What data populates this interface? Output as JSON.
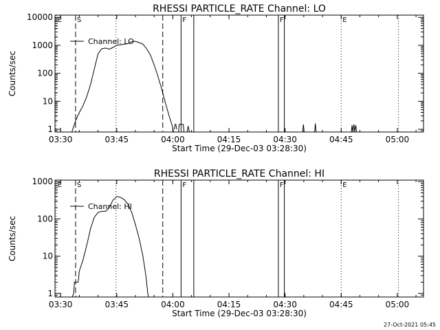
{
  "footer": {
    "date_stamp": "27-Oct-2021 05:45"
  },
  "chart_data": [
    {
      "type": "line",
      "title": "RHESSI PARTICLE_RATE Channel: LO",
      "xlabel": "Start Time (29-Dec-03 03:28:30)",
      "ylabel": "Counts/sec",
      "x_unit": "minutes after 03:28:30",
      "xlim": [
        0,
        98.5
      ],
      "x_ticks": [
        {
          "x": 1.5,
          "label": "03:30"
        },
        {
          "x": 16.5,
          "label": "03:45"
        },
        {
          "x": 31.5,
          "label": "04:00"
        },
        {
          "x": 46.5,
          "label": "04:15"
        },
        {
          "x": 61.5,
          "label": "04:30"
        },
        {
          "x": 76.5,
          "label": "04:45"
        },
        {
          "x": 91.5,
          "label": "05:00"
        }
      ],
      "y_scale": "log",
      "ylim": [
        0.8,
        12000
      ],
      "y_ticks": [
        {
          "y": 1,
          "label": "1"
        },
        {
          "y": 10,
          "label": "10"
        },
        {
          "y": 100,
          "label": "100"
        },
        {
          "y": 1000,
          "label": "1000"
        },
        {
          "y": 10000,
          "label": "10000"
        }
      ],
      "legend": {
        "label": "Channel: LO",
        "position": "top-left"
      },
      "markers": [
        {
          "x": 0.3,
          "label": "E",
          "style": "dotted"
        },
        {
          "x": 5.5,
          "label": "S",
          "style": "dashed"
        },
        {
          "x": 16.3,
          "label": "",
          "style": "dotted"
        },
        {
          "x": 28.8,
          "label": "",
          "style": "dashed"
        },
        {
          "x": 33.7,
          "label": "F",
          "style": "solid"
        },
        {
          "x": 37.1,
          "label": "",
          "style": "solid"
        },
        {
          "x": 59.7,
          "label": "F",
          "style": "solid"
        },
        {
          "x": 61.3,
          "label": "",
          "style": "solid"
        },
        {
          "x": 76.5,
          "label": "E",
          "style": "dotted"
        },
        {
          "x": 91.8,
          "label": "",
          "style": "dotted"
        }
      ],
      "series": [
        {
          "segments": [
            [
              [
                4.5,
                0.8
              ],
              [
                5.5,
                2
              ],
              [
                6.5,
                4
              ],
              [
                7.5,
                7
              ],
              [
                8.5,
                15
              ],
              [
                9.5,
                40
              ],
              [
                10.5,
                140
              ],
              [
                11.5,
                500
              ],
              [
                12.5,
                750
              ],
              [
                13.5,
                800
              ],
              [
                14.5,
                730
              ],
              [
                15.5,
                840
              ],
              [
                16.5,
                1000
              ],
              [
                17.5,
                1050
              ],
              [
                18.5,
                1100
              ],
              [
                19.5,
                1150
              ],
              [
                20.5,
                1350
              ],
              [
                21.5,
                1400
              ],
              [
                22.5,
                1250
              ],
              [
                23.5,
                1100
              ],
              [
                24.5,
                750
              ],
              [
                25.5,
                450
              ],
              [
                26.5,
                200
              ],
              [
                27.5,
                80
              ],
              [
                28.5,
                28
              ],
              [
                29.5,
                9
              ],
              [
                30.5,
                3
              ],
              [
                31.3,
                1.4
              ],
              [
                31.7,
                0.8
              ]
            ],
            [
              [
                31.9,
                1
              ],
              [
                32.1,
                1.5
              ],
              [
                32.3,
                1.5
              ],
              [
                32.5,
                1
              ]
            ],
            [
              [
                33.0,
                0.8
              ],
              [
                33.2,
                1.5
              ],
              [
                34.3,
                1.5
              ],
              [
                34.5,
                0.8
              ]
            ],
            [
              [
                35.3,
                0.8
              ],
              [
                35.6,
                1.3
              ],
              [
                35.9,
                0.8
              ]
            ],
            [
              [
                66.2,
                0.8
              ],
              [
                66.4,
                1.5
              ],
              [
                66.6,
                0.8
              ]
            ],
            [
              [
                69.4,
                0.8
              ],
              [
                69.6,
                1.6
              ],
              [
                69.8,
                0.8
              ]
            ],
            [
              [
                79.2,
                0.8
              ],
              [
                79.4,
                1.4
              ],
              [
                79.6,
                0.8
              ],
              [
                79.9,
                1.5
              ],
              [
                80.1,
                0.8
              ],
              [
                80.4,
                1.4
              ],
              [
                80.6,
                0.8
              ]
            ]
          ]
        }
      ]
    },
    {
      "type": "line",
      "title": "RHESSI PARTICLE_RATE Channel: HI",
      "xlabel": "Start Time (29-Dec-03 03:28:30)",
      "ylabel": "Counts/sec",
      "x_unit": "minutes after 03:28:30",
      "xlim": [
        0,
        98.5
      ],
      "x_ticks": [
        {
          "x": 1.5,
          "label": "03:30"
        },
        {
          "x": 16.5,
          "label": "03:45"
        },
        {
          "x": 31.5,
          "label": "04:00"
        },
        {
          "x": 46.5,
          "label": "04:15"
        },
        {
          "x": 61.5,
          "label": "04:30"
        },
        {
          "x": 76.5,
          "label": "04:45"
        },
        {
          "x": 91.5,
          "label": "05:00"
        }
      ],
      "y_scale": "log",
      "ylim": [
        0.8,
        1100
      ],
      "y_ticks": [
        {
          "y": 1,
          "label": "1"
        },
        {
          "y": 10,
          "label": "10"
        },
        {
          "y": 100,
          "label": "100"
        },
        {
          "y": 1000,
          "label": "1000"
        }
      ],
      "legend": {
        "label": "Channel: HI",
        "position": "top-left"
      },
      "markers": [
        {
          "x": 0.3,
          "label": "E",
          "style": "dotted"
        },
        {
          "x": 5.5,
          "label": "S",
          "style": "dashed"
        },
        {
          "x": 16.3,
          "label": "",
          "style": "dotted"
        },
        {
          "x": 28.8,
          "label": "",
          "style": "dashed"
        },
        {
          "x": 33.7,
          "label": "F",
          "style": "solid"
        },
        {
          "x": 37.1,
          "label": "",
          "style": "solid"
        },
        {
          "x": 59.7,
          "label": "F",
          "style": "solid"
        },
        {
          "x": 61.3,
          "label": "",
          "style": "solid"
        },
        {
          "x": 76.5,
          "label": "E",
          "style": "dotted"
        },
        {
          "x": 91.8,
          "label": "",
          "style": "dotted"
        }
      ],
      "series": [
        {
          "segments": [
            [
              [
                4.6,
                0.8
              ],
              [
                5.0,
                1
              ],
              [
                5.2,
                2
              ],
              [
                6.2,
                2
              ],
              [
                6.5,
                4
              ],
              [
                7.5,
                8
              ],
              [
                8.5,
                20
              ],
              [
                9.5,
                55
              ],
              [
                10.5,
                110
              ],
              [
                11.5,
                150
              ],
              [
                12.5,
                160
              ],
              [
                13.5,
                160
              ],
              [
                14.5,
                200
              ],
              [
                15.5,
                320
              ],
              [
                16.5,
                400
              ],
              [
                17.5,
                380
              ],
              [
                18.5,
                330
              ],
              [
                19.5,
                250
              ],
              [
                20.5,
                150
              ],
              [
                21.5,
                70
              ],
              [
                22.5,
                30
              ],
              [
                23.5,
                10
              ],
              [
                24.3,
                3
              ],
              [
                24.8,
                1
              ],
              [
                25.0,
                0.8
              ]
            ]
          ]
        }
      ]
    }
  ]
}
